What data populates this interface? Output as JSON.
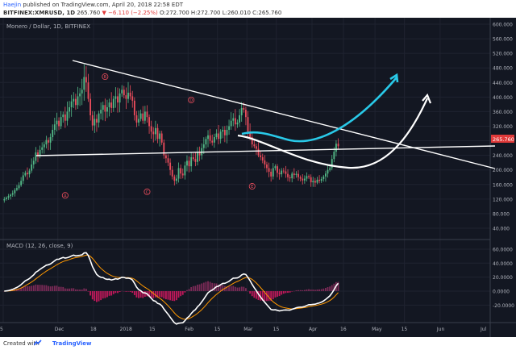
{
  "header": {
    "author": "Haejin",
    "published_text": "published on TradingView.com, April 20, 2018 22:58 EDT",
    "symbol": "BITFINEX:XMRUSD, 1D",
    "last": "265.760",
    "change": "−6.110 (−2.25%)",
    "ohlc": "O:272.700 H:272.700 L:260.010 C:265.760"
  },
  "footer": {
    "created_with": "Created with",
    "brand": "TradingView"
  },
  "chart_data": {
    "type": "candlestick",
    "title": "Monero / Dollar, 1D, BITFINEX",
    "last_price_label": "265.760",
    "price_axis": {
      "ylim": [
        20,
        600
      ],
      "ticks": [
        "600.000",
        "560.000",
        "520.000",
        "480.000",
        "440.000",
        "400.000",
        "360.000",
        "320.000",
        "280.000",
        "240.000",
        "200.000",
        "160.000",
        "120.000",
        "80.000",
        "40.000"
      ]
    },
    "macd_title": "MACD (12, 26, close, 9)",
    "macd_axis": {
      "ylim": [
        -38,
        68
      ],
      "ticks": [
        "60.0000",
        "40.0000",
        "20.0000",
        "0.0000",
        "-20.0000"
      ]
    },
    "x_axis": {
      "range_days": [
        0,
        228
      ],
      "ticks": [
        {
          "label": "5",
          "day": 0
        },
        {
          "label": "Dec",
          "day": 26
        },
        {
          "label": "18",
          "day": 43
        },
        {
          "label": "2018",
          "day": 57
        },
        {
          "label": "15",
          "day": 71
        },
        {
          "label": "Feb",
          "day": 88
        },
        {
          "label": "15",
          "day": 102
        },
        {
          "label": "Mar",
          "day": 116
        },
        {
          "label": "15",
          "day": 130
        },
        {
          "label": "Apr",
          "day": 147
        },
        {
          "label": "16",
          "day": 162
        },
        {
          "label": "May",
          "day": 177
        },
        {
          "label": "15",
          "day": 191
        },
        {
          "label": "Jun",
          "day": 208
        },
        {
          "label": "Jul",
          "day": 238
        }
      ]
    },
    "closes": [
      120,
      124,
      128,
      132,
      136,
      145,
      150,
      158,
      170,
      185,
      192,
      188,
      198,
      215,
      225,
      248,
      240,
      255,
      262,
      270,
      282,
      275,
      290,
      310,
      325,
      335,
      320,
      345,
      352,
      335,
      360,
      372,
      388,
      395,
      378,
      402,
      410,
      420,
      455,
      440,
      395,
      350,
      322,
      340,
      330,
      355,
      365,
      378,
      360,
      372,
      385,
      370,
      395,
      402,
      385,
      410,
      420,
      405,
      395,
      412,
      402,
      390,
      350,
      330,
      340,
      355,
      335,
      360,
      345,
      320,
      305,
      298,
      315,
      285,
      300,
      275,
      240,
      232,
      220,
      200,
      182,
      170,
      176,
      205,
      190,
      185,
      212,
      225,
      210,
      235,
      230,
      222,
      248,
      240,
      260,
      270,
      285,
      295,
      280,
      275,
      290,
      300,
      285,
      305,
      310,
      295,
      310,
      320,
      335,
      342,
      325,
      330,
      350,
      370,
      365,
      345,
      305,
      290,
      270,
      265,
      258,
      240,
      235,
      226,
      215,
      205,
      195,
      182,
      205,
      210,
      192,
      188,
      198,
      196,
      189,
      180,
      177,
      190,
      186,
      189,
      180,
      176,
      171,
      176,
      183,
      180,
      166,
      170,
      165,
      173,
      170,
      175,
      182,
      190,
      200,
      205,
      230,
      250,
      272,
      265
    ],
    "annotations": [
      {
        "text": "A",
        "day": 29,
        "price": 130
      },
      {
        "text": "B",
        "day": 48,
        "price": 456
      },
      {
        "text": "C",
        "day": 68,
        "price": 140
      },
      {
        "text": "D",
        "day": 89,
        "price": 392
      },
      {
        "text": "E",
        "day": 118,
        "price": 155
      }
    ]
  }
}
